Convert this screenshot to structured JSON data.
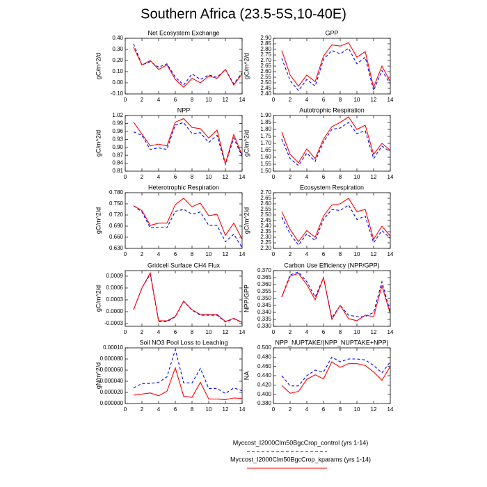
{
  "title": "Southern Africa (23.5-5S,10-40E)",
  "legend": [
    {
      "name": "Myccost_I2000Clm50BgcCrop_control (yrs 1-14)",
      "color": "#0000ff",
      "dashed": true
    },
    {
      "name": "Myccost_I2000Clm50BgcCrop_kparams (yrs 1-14)",
      "color": "#ff0000",
      "dashed": false
    }
  ],
  "chart_data": [
    {
      "type": "line",
      "title": "Net Ecosystem Exchange",
      "y_label": "gC/m^2/d",
      "x": [
        1,
        2,
        3,
        4,
        5,
        6,
        7,
        8,
        9,
        10,
        11,
        12,
        13,
        14
      ],
      "xlim": [
        0,
        14
      ],
      "xticks": [
        0,
        2,
        4,
        6,
        8,
        10,
        12,
        14
      ],
      "ylim": [
        -0.1,
        0.4
      ],
      "yticks": [
        {
          "value": -0.1,
          "label": "-0.10"
        },
        {
          "value": 0,
          "label": "0.00"
        },
        {
          "value": 0.1,
          "label": "0.10"
        },
        {
          "value": 0.2,
          "label": "0.20"
        },
        {
          "value": 0.3,
          "label": "0.30"
        },
        {
          "value": 0.4,
          "label": "0.40"
        }
      ],
      "series": [
        {
          "values": [
            0.35,
            0.16,
            0.19,
            0.14,
            0.17,
            0.05,
            -0.02,
            0.08,
            0.03,
            0.07,
            0.05,
            0.12,
            -0.01,
            0.09
          ]
        },
        {
          "values": [
            0.32,
            0.16,
            0.2,
            0.12,
            0.16,
            0.03,
            -0.04,
            0.04,
            0.0,
            0.06,
            0.04,
            0.12,
            -0.02,
            0.08
          ]
        }
      ]
    },
    {
      "type": "line",
      "title": "GPP",
      "y_label": "gC/m^2/d",
      "x": [
        1,
        2,
        3,
        4,
        5,
        6,
        7,
        8,
        9,
        10,
        11,
        12,
        13,
        14
      ],
      "xlim": [
        0,
        14
      ],
      "xticks": [
        0,
        2,
        4,
        6,
        8,
        10,
        12,
        14
      ],
      "ylim": [
        2.4,
        2.9
      ],
      "yticks": [
        {
          "value": 2.4,
          "label": "2.40"
        },
        {
          "value": 2.45,
          "label": "2.45"
        },
        {
          "value": 2.5,
          "label": "2.50"
        },
        {
          "value": 2.55,
          "label": "2.55"
        },
        {
          "value": 2.6,
          "label": "2.60"
        },
        {
          "value": 2.65,
          "label": "2.65"
        },
        {
          "value": 2.7,
          "label": "2.70"
        },
        {
          "value": 2.75,
          "label": "2.75"
        },
        {
          "value": 2.8,
          "label": "2.80"
        },
        {
          "value": 2.85,
          "label": "2.85"
        },
        {
          "value": 2.9,
          "label": "2.90"
        }
      ],
      "series": [
        {
          "values": [
            2.72,
            2.52,
            2.43,
            2.53,
            2.47,
            2.71,
            2.79,
            2.76,
            2.81,
            2.67,
            2.73,
            2.43,
            2.61,
            2.49
          ]
        },
        {
          "values": [
            2.79,
            2.57,
            2.47,
            2.57,
            2.51,
            2.74,
            2.84,
            2.83,
            2.86,
            2.73,
            2.78,
            2.46,
            2.65,
            2.51
          ]
        }
      ]
    },
    {
      "type": "line",
      "title": "NPP",
      "y_label": "gC/m^2/d",
      "x": [
        1,
        2,
        3,
        4,
        5,
        6,
        7,
        8,
        9,
        10,
        11,
        12,
        13,
        14
      ],
      "xlim": [
        0,
        14
      ],
      "xticks": [
        0,
        2,
        4,
        6,
        8,
        10,
        12,
        14
      ],
      "ylim": [
        0.81,
        1.02
      ],
      "yticks": [
        {
          "value": 0.81,
          "label": "0.81"
        },
        {
          "value": 0.84,
          "label": "0.84"
        },
        {
          "value": 0.87,
          "label": "0.87"
        },
        {
          "value": 0.9,
          "label": "0.90"
        },
        {
          "value": 0.93,
          "label": "0.93"
        },
        {
          "value": 0.96,
          "label": "0.96"
        },
        {
          "value": 0.99,
          "label": "0.99"
        },
        {
          "value": 1.02,
          "label": "1.02"
        }
      ],
      "series": [
        {
          "values": [
            0.958,
            0.945,
            0.892,
            0.898,
            0.892,
            0.985,
            0.993,
            0.952,
            0.955,
            0.918,
            0.945,
            0.835,
            0.935,
            0.865
          ]
        },
        {
          "values": [
            0.995,
            0.95,
            0.905,
            0.912,
            0.905,
            0.995,
            1.008,
            0.975,
            0.97,
            0.935,
            0.965,
            0.838,
            0.948,
            0.87
          ]
        }
      ]
    },
    {
      "type": "line",
      "title": "Autotrophic Respiration",
      "y_label": "gC/m^2/d",
      "x": [
        1,
        2,
        3,
        4,
        5,
        6,
        7,
        8,
        9,
        10,
        11,
        12,
        13,
        14
      ],
      "xlim": [
        0,
        14
      ],
      "xticks": [
        0,
        2,
        4,
        6,
        8,
        10,
        12,
        14
      ],
      "ylim": [
        1.5,
        1.9
      ],
      "yticks": [
        {
          "value": 1.5,
          "label": "1.50"
        },
        {
          "value": 1.55,
          "label": "1.55"
        },
        {
          "value": 1.6,
          "label": "1.60"
        },
        {
          "value": 1.65,
          "label": "1.65"
        },
        {
          "value": 1.7,
          "label": "1.70"
        },
        {
          "value": 1.75,
          "label": "1.75"
        },
        {
          "value": 1.8,
          "label": "1.80"
        },
        {
          "value": 1.85,
          "label": "1.85"
        },
        {
          "value": 1.9,
          "label": "1.90"
        }
      ],
      "series": [
        {
          "values": [
            1.73,
            1.59,
            1.54,
            1.63,
            1.57,
            1.71,
            1.8,
            1.81,
            1.85,
            1.77,
            1.79,
            1.59,
            1.68,
            1.64
          ]
        },
        {
          "values": [
            1.78,
            1.62,
            1.56,
            1.66,
            1.59,
            1.73,
            1.82,
            1.85,
            1.89,
            1.8,
            1.83,
            1.62,
            1.7,
            1.65
          ]
        }
      ]
    },
    {
      "type": "line",
      "title": "Heterotrophic Respiration",
      "y_label": "gC/m^2/d",
      "x": [
        1,
        2,
        3,
        4,
        5,
        6,
        7,
        8,
        9,
        10,
        11,
        12,
        13,
        14
      ],
      "xlim": [
        0,
        14
      ],
      "xticks": [
        0,
        2,
        4,
        6,
        8,
        10,
        12,
        14
      ],
      "ylim": [
        0.63,
        0.78
      ],
      "yticks": [
        {
          "value": 0.63,
          "label": "0.630"
        },
        {
          "value": 0.66,
          "label": "0.660"
        },
        {
          "value": 0.69,
          "label": "0.690"
        },
        {
          "value": 0.72,
          "label": "0.720"
        },
        {
          "value": 0.75,
          "label": "0.750"
        },
        {
          "value": 0.78,
          "label": "0.780"
        }
      ],
      "series": [
        {
          "values": [
            0.745,
            0.728,
            0.685,
            0.686,
            0.686,
            0.73,
            0.735,
            0.722,
            0.728,
            0.692,
            0.692,
            0.648,
            0.668,
            0.632
          ]
        },
        {
          "values": [
            0.745,
            0.732,
            0.692,
            0.698,
            0.698,
            0.748,
            0.765,
            0.742,
            0.752,
            0.718,
            0.722,
            0.665,
            0.698,
            0.655
          ]
        }
      ]
    },
    {
      "type": "line",
      "title": "Ecosystem Respiration",
      "y_label": "gC/m^2/d",
      "x": [
        1,
        2,
        3,
        4,
        5,
        6,
        7,
        8,
        9,
        10,
        11,
        12,
        13,
        14
      ],
      "xlim": [
        0,
        14
      ],
      "xticks": [
        0,
        2,
        4,
        6,
        8,
        10,
        12,
        14
      ],
      "ylim": [
        2.2,
        2.7
      ],
      "yticks": [
        {
          "value": 2.2,
          "label": "2.20"
        },
        {
          "value": 2.25,
          "label": "2.25"
        },
        {
          "value": 2.3,
          "label": "2.30"
        },
        {
          "value": 2.35,
          "label": "2.35"
        },
        {
          "value": 2.4,
          "label": "2.40"
        },
        {
          "value": 2.45,
          "label": "2.45"
        },
        {
          "value": 2.5,
          "label": "2.50"
        },
        {
          "value": 2.55,
          "label": "2.55"
        },
        {
          "value": 2.6,
          "label": "2.60"
        },
        {
          "value": 2.65,
          "label": "2.65"
        },
        {
          "value": 2.7,
          "label": "2.70"
        }
      ],
      "series": [
        {
          "values": [
            2.48,
            2.33,
            2.23,
            2.33,
            2.27,
            2.46,
            2.55,
            2.54,
            2.59,
            2.46,
            2.49,
            2.25,
            2.36,
            2.29
          ]
        },
        {
          "values": [
            2.53,
            2.37,
            2.26,
            2.36,
            2.3,
            2.49,
            2.59,
            2.6,
            2.65,
            2.53,
            2.55,
            2.28,
            2.4,
            2.31
          ]
        }
      ]
    },
    {
      "type": "line",
      "title": "Gridcell Surface CH4 Flux",
      "y_label": "gC/m^2/d",
      "x": [
        1,
        2,
        3,
        4,
        5,
        6,
        7,
        8,
        9,
        10,
        11,
        12,
        13,
        14
      ],
      "xlim": [
        0,
        14
      ],
      "xticks": [
        0,
        2,
        4,
        6,
        8,
        10,
        12,
        14
      ],
      "ylim": [
        -0.00037,
        0.00104
      ],
      "yticks": [
        {
          "value": -0.0003,
          "label": "-0.0003"
        },
        {
          "value": 0,
          "label": "0.0000"
        },
        {
          "value": 0.0003,
          "label": "0.0003"
        },
        {
          "value": 0.0006,
          "label": "0.0006"
        },
        {
          "value": 0.0009,
          "label": "0.0009"
        }
      ],
      "series": [
        {
          "values": [
            5e-05,
            0.0006,
            0.00095,
            -0.00025,
            -0.00025,
            -0.00013,
            0.00026,
            4e-05,
            -9e-05,
            -9e-05,
            -9e-05,
            -0.00026,
            -0.00018,
            -0.00028
          ]
        },
        {
          "values": [
            5e-05,
            0.0006,
            0.00098,
            -0.00023,
            -0.00023,
            -0.00012,
            0.00027,
            5e-05,
            -7e-05,
            -7e-05,
            -7e-05,
            -0.00025,
            -0.00017,
            -0.00027
          ]
        }
      ]
    },
    {
      "type": "line",
      "title": "Carbon Use Efficiency (NPP/GPP)",
      "y_label": "NPP/GPP",
      "x": [
        1,
        2,
        3,
        4,
        5,
        6,
        7,
        8,
        9,
        10,
        11,
        12,
        13,
        14
      ],
      "xlim": [
        0,
        14
      ],
      "xticks": [
        0,
        2,
        4,
        6,
        8,
        10,
        12,
        14
      ],
      "ylim": [
        0.33,
        0.37
      ],
      "yticks": [
        {
          "value": 0.33,
          "label": "0.330"
        },
        {
          "value": 0.335,
          "label": "0.335"
        },
        {
          "value": 0.34,
          "label": "0.340"
        },
        {
          "value": 0.345,
          "label": "0.345"
        },
        {
          "value": 0.35,
          "label": "0.350"
        },
        {
          "value": 0.355,
          "label": "0.355"
        },
        {
          "value": 0.36,
          "label": "0.360"
        },
        {
          "value": 0.365,
          "label": "0.365"
        },
        {
          "value": 0.37,
          "label": "0.370"
        }
      ],
      "series": [
        {
          "values": [
            0.351,
            0.367,
            0.369,
            0.362,
            0.351,
            0.365,
            0.336,
            0.345,
            0.338,
            0.337,
            0.337,
            0.34,
            0.362,
            0.34
          ]
        },
        {
          "values": [
            0.351,
            0.366,
            0.368,
            0.36,
            0.349,
            0.365,
            0.335,
            0.345,
            0.3355,
            0.334,
            0.338,
            0.337,
            0.359,
            0.339
          ]
        }
      ]
    },
    {
      "type": "line",
      "title": "Soil NO3 Pool Loss to Leaching",
      "y_label": "gN/m^2/d",
      "x": [
        1,
        2,
        3,
        4,
        5,
        6,
        7,
        8,
        9,
        10,
        11,
        12,
        13,
        14
      ],
      "xlim": [
        0,
        14
      ],
      "xticks": [
        0,
        2,
        4,
        6,
        8,
        10,
        12,
        14
      ],
      "ylim": [
        0,
        0.0001
      ],
      "yticks": [
        {
          "value": 0,
          "label": "0.000000"
        },
        {
          "value": 2e-05,
          "label": "0.000020"
        },
        {
          "value": 4e-05,
          "label": "0.000040"
        },
        {
          "value": 6e-05,
          "label": "0.000060"
        },
        {
          "value": 8e-05,
          "label": "0.000080"
        },
        {
          "value": 0.0001,
          "label": "0.00010"
        }
      ],
      "series": [
        {
          "values": [
            2.8e-05,
            3.6e-05,
            3.6e-05,
            3.8e-05,
            4.8e-05,
            9.7e-05,
            3.7e-05,
            3.7e-05,
            6.3e-05,
            2.7e-05,
            2.7e-05,
            1.8e-05,
            2.8e-05,
            2.3e-05
          ]
        },
        {
          "values": [
            1.5e-05,
            1.7e-05,
            1.9e-05,
            1.4e-05,
            2.2e-05,
            6.4e-05,
            1.3e-05,
            1.1e-05,
            3.8e-05,
            8e-06,
            8e-06,
            7e-06,
            1e-05,
            9e-06
          ]
        }
      ]
    },
    {
      "type": "line",
      "title": "NPP_NUPTAKE/(NPP_NUPTAKE+NPP)",
      "y_label": "NA",
      "x": [
        1,
        2,
        3,
        4,
        5,
        6,
        7,
        8,
        9,
        10,
        11,
        12,
        13,
        14
      ],
      "xlim": [
        0,
        14
      ],
      "xticks": [
        0,
        2,
        4,
        6,
        8,
        10,
        12,
        14
      ],
      "ylim": [
        0.38,
        0.5
      ],
      "yticks": [
        {
          "value": 0.38,
          "label": "0.380"
        },
        {
          "value": 0.4,
          "label": "0.400"
        },
        {
          "value": 0.42,
          "label": "0.420"
        },
        {
          "value": 0.44,
          "label": "0.440"
        },
        {
          "value": 0.46,
          "label": "0.460"
        },
        {
          "value": 0.48,
          "label": "0.480"
        },
        {
          "value": 0.5,
          "label": "0.500"
        }
      ],
      "series": [
        {
          "values": [
            0.44,
            0.418,
            0.418,
            0.44,
            0.452,
            0.448,
            0.48,
            0.47,
            0.476,
            0.476,
            0.474,
            0.462,
            0.446,
            0.47
          ]
        },
        {
          "values": [
            0.419,
            0.402,
            0.406,
            0.432,
            0.442,
            0.433,
            0.47,
            0.458,
            0.466,
            0.466,
            0.462,
            0.448,
            0.43,
            0.46
          ]
        }
      ]
    }
  ]
}
